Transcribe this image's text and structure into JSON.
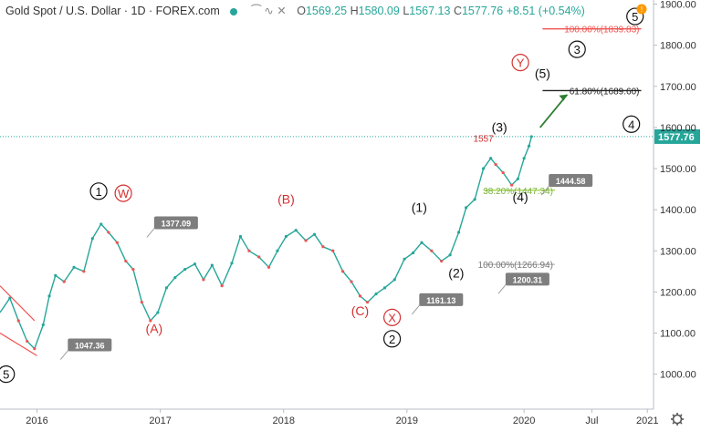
{
  "header": {
    "symbol": "Gold Spot / U.S. Dollar · 1D · FOREX.com",
    "open_label": "O",
    "open": "1569.25",
    "high_label": "H",
    "high": "1580.09",
    "low_label": "L",
    "low": "1567.13",
    "close_label": "C",
    "close": "1577.76",
    "change": "+8.51 (+0.54%)"
  },
  "colors": {
    "up": "#26a69a",
    "down": "#ef5350",
    "wave_red": "#d32f2f",
    "badge": "#7e7e7e",
    "fib_red": "#ef5350",
    "fib_lime": "#9bd23b",
    "arrow": "#2e7d32",
    "price_tag": "#26a69a"
  },
  "chart_data": {
    "type": "line",
    "title": "",
    "y_ticks": [
      1000,
      1100,
      1200,
      1300,
      1400,
      1500,
      1600,
      1700,
      1800,
      1900
    ],
    "y_tick_labels": [
      "1000.00",
      "1100.00",
      "1200.00",
      "1300.00",
      "1400.00",
      "1500.00",
      "1600.00",
      "1700.00",
      "1800.00",
      "1900.00"
    ],
    "ylim": [
      915,
      1910
    ],
    "xlim": [
      2015.7,
      2021.0
    ],
    "x_ticks": [
      2016.0,
      2017.0,
      2018.0,
      2019.0,
      2019.95,
      2020.5,
      2020.95
    ],
    "x_tick_labels": [
      "2016",
      "2017",
      "2018",
      "2019",
      "2020",
      "Jul",
      "2021"
    ],
    "series": [
      {
        "values": [
          [
            2015.7,
            1150
          ],
          [
            2015.78,
            1185
          ],
          [
            2015.85,
            1130
          ],
          [
            2015.92,
            1080
          ],
          [
            2015.98,
            1062
          ],
          [
            2016.05,
            1120
          ],
          [
            2016.1,
            1190
          ],
          [
            2016.15,
            1240
          ],
          [
            2016.22,
            1225
          ],
          [
            2016.3,
            1260
          ],
          [
            2016.38,
            1250
          ],
          [
            2016.45,
            1330
          ],
          [
            2016.52,
            1365
          ],
          [
            2016.58,
            1345
          ],
          [
            2016.65,
            1320
          ],
          [
            2016.72,
            1275
          ],
          [
            2016.78,
            1255
          ],
          [
            2016.85,
            1175
          ],
          [
            2016.92,
            1130
          ],
          [
            2016.98,
            1150
          ],
          [
            2017.05,
            1210
          ],
          [
            2017.12,
            1235
          ],
          [
            2017.2,
            1255
          ],
          [
            2017.28,
            1268
          ],
          [
            2017.35,
            1230
          ],
          [
            2017.42,
            1265
          ],
          [
            2017.5,
            1215
          ],
          [
            2017.58,
            1270
          ],
          [
            2017.65,
            1335
          ],
          [
            2017.72,
            1300
          ],
          [
            2017.8,
            1285
          ],
          [
            2017.88,
            1260
          ],
          [
            2017.95,
            1300
          ],
          [
            2018.02,
            1335
          ],
          [
            2018.1,
            1350
          ],
          [
            2018.18,
            1325
          ],
          [
            2018.25,
            1340
          ],
          [
            2018.32,
            1310
          ],
          [
            2018.4,
            1300
          ],
          [
            2018.48,
            1250
          ],
          [
            2018.55,
            1225
          ],
          [
            2018.62,
            1190
          ],
          [
            2018.68,
            1175
          ],
          [
            2018.75,
            1195
          ],
          [
            2018.82,
            1210
          ],
          [
            2018.9,
            1230
          ],
          [
            2018.98,
            1280
          ],
          [
            2019.05,
            1295
          ],
          [
            2019.12,
            1320
          ],
          [
            2019.2,
            1300
          ],
          [
            2019.28,
            1275
          ],
          [
            2019.35,
            1290
          ],
          [
            2019.42,
            1345
          ],
          [
            2019.48,
            1405
          ],
          [
            2019.55,
            1425
          ],
          [
            2019.62,
            1500
          ],
          [
            2019.68,
            1525
          ],
          [
            2019.72,
            1510
          ],
          [
            2019.78,
            1490
          ],
          [
            2019.85,
            1460
          ],
          [
            2019.9,
            1475
          ],
          [
            2019.95,
            1525
          ],
          [
            2019.99,
            1555
          ],
          [
            2020.01,
            1577.76
          ]
        ]
      }
    ],
    "last_price": 1577.76,
    "last_price_label": "1577.76",
    "fib_levels": [
      {
        "label": "100.00%(1839.83)",
        "value": 1839.83
      },
      {
        "label": "61.80%(1689.60)",
        "value": 1689.6
      },
      {
        "label": "38.20%(1447.34)",
        "value": 1447.34
      },
      {
        "label": "100.00%(1266.94)",
        "value": 1266.94
      }
    ],
    "price_badges": [
      {
        "label": "1377.09",
        "x": 2016.95,
        "y": 1377.09
      },
      {
        "label": "1047.36",
        "x": 2016.25,
        "y": 1080
      },
      {
        "label": "1161.13",
        "x": 2019.1,
        "y": 1190
      },
      {
        "label": "1200.31",
        "x": 2019.8,
        "y": 1240
      },
      {
        "label": "1444.58",
        "x": 2020.15,
        "y": 1480
      }
    ],
    "wave_labels": [
      {
        "text": "1",
        "x": 2016.5,
        "y": 1445,
        "style": "circle"
      },
      {
        "text": "W",
        "x": 2016.7,
        "y": 1440,
        "style": "circle-red"
      },
      {
        "text": "(A)",
        "x": 2016.95,
        "y": 1100,
        "style": "red"
      },
      {
        "text": "(B)",
        "x": 2018.02,
        "y": 1415,
        "style": "red"
      },
      {
        "text": "(C)",
        "x": 2018.62,
        "y": 1143,
        "style": "red"
      },
      {
        "text": "X",
        "x": 2018.88,
        "y": 1138,
        "style": "circle-red"
      },
      {
        "text": "2",
        "x": 2018.88,
        "y": 1086,
        "style": "circle"
      },
      {
        "text": "(1)",
        "x": 2019.1,
        "y": 1395,
        "style": "black"
      },
      {
        "text": "(2)",
        "x": 2019.4,
        "y": 1235,
        "style": "black"
      },
      {
        "text": "(3)",
        "x": 2019.75,
        "y": 1590,
        "style": "black"
      },
      {
        "text": "1557",
        "x": 2019.62,
        "y": 1565,
        "style": "small-red"
      },
      {
        "text": "(4)",
        "x": 2019.92,
        "y": 1420,
        "style": "black"
      },
      {
        "text": "(5)",
        "x": 2020.1,
        "y": 1720,
        "style": "black"
      },
      {
        "text": "Y",
        "x": 2019.92,
        "y": 1758,
        "style": "circle-red"
      },
      {
        "text": "3",
        "x": 2020.38,
        "y": 1790,
        "style": "circle"
      },
      {
        "text": "4",
        "x": 2020.82,
        "y": 1608,
        "style": "circle"
      },
      {
        "text": "5",
        "x": 2020.85,
        "y": 1870,
        "style": "circle"
      },
      {
        "text": "5",
        "x": 2015.75,
        "y": 1000,
        "style": "circle"
      }
    ],
    "legend": "none",
    "grid": false
  }
}
